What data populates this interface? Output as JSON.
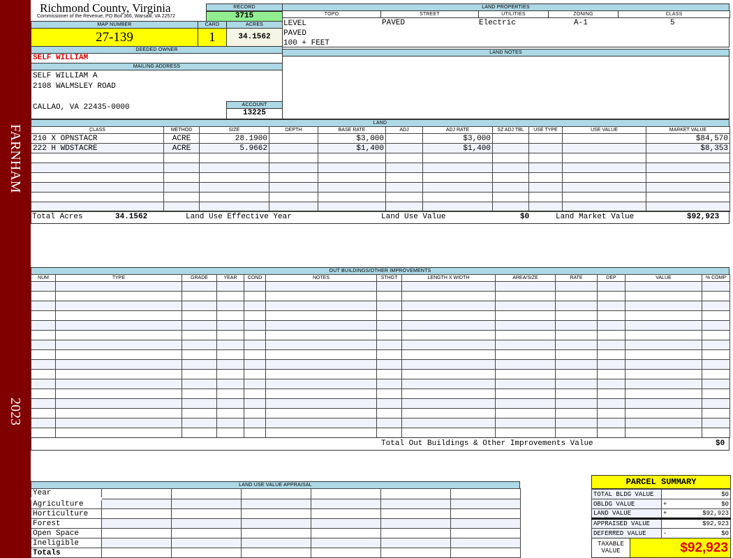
{
  "sidebar": {
    "district": "FARNHAM",
    "year": "2023",
    "color": "#800000"
  },
  "header": {
    "title": "Richmond County, Virginia",
    "subtitle": "Commissioner of the Revenue, PO Box 366, Warsaw, VA 22572"
  },
  "record": {
    "label": "RECORD",
    "value": "3715"
  },
  "parcel": {
    "map_label": "MAP NUMBER",
    "map": "27-139",
    "card_label": "CARD",
    "card": "1",
    "acres_label": "ACRES",
    "acres": "34.1562"
  },
  "owner": {
    "label": "DEEDED OWNER",
    "name": "SELF WILLIAM"
  },
  "mailing": {
    "label": "MAILING ADDRESS",
    "line1": "SELF WILLIAM A",
    "line2": "2108 WALMSLEY ROAD",
    "line3": "CALLAO, VA 22435-0000"
  },
  "account": {
    "label": "ACCOUNT",
    "value": "13225"
  },
  "land_properties": {
    "label": "LAND PROPERTIES",
    "columns": [
      "TOPO",
      "STREET",
      "UTILITIES",
      "ZONING",
      "CLASS"
    ],
    "topo": [
      "LEVEL",
      "PAVED",
      "100 + FEET"
    ],
    "street": "PAVED",
    "utilities": "Electric",
    "zoning": "A-1",
    "class": "5"
  },
  "land_notes": {
    "label": "LAND NOTES"
  },
  "land": {
    "label": "LAND",
    "columns": [
      "CLASS",
      "METHOD",
      "SIZE",
      "DEPTH",
      "BASE RATE",
      "ADJ",
      "ADJ RATE",
      "SZ ADJ TBL",
      "USE TYPE",
      "USE VALUE",
      "MARKET VALUE"
    ],
    "rows": [
      [
        "210 X OPNSTACR",
        "ACRE",
        "28.1900",
        "",
        "$3,000",
        "",
        "$3,000",
        "",
        "",
        "",
        "$84,570"
      ],
      [
        "222 H WDSTACRE",
        "ACRE",
        "5.9662",
        "",
        "$1,400",
        "",
        "$1,400",
        "",
        "",
        "",
        "$8,353"
      ]
    ],
    "totals": {
      "acres_label": "Total Acres",
      "acres": "34.1562",
      "eff_year_label": "Land Use Effective Year",
      "use_value_label": "Land Use Value",
      "use_value": "$0",
      "market_label": "Land Market Value",
      "market": "$92,923"
    }
  },
  "outbuildings": {
    "label": "OUT BUILDINGS/OTHER IMPROVEMENTS",
    "columns": [
      "NUM",
      "TYPE",
      "GRADE",
      "YEAR",
      "COND",
      "NOTES",
      "STHGT",
      "LENGTH X WIDTH",
      "AREA/SIZE",
      "RATE",
      "DEP",
      "VALUE",
      "% COMP"
    ],
    "total_label": "Total Out Buildings & Other Improvements Value",
    "total": "$0"
  },
  "land_use": {
    "label": "LAND USE VALUE APPRAISAL",
    "year_label": "Year",
    "rows": [
      "Agriculture",
      "Horticulture",
      "Forest",
      "Open Space",
      "Ineligible"
    ],
    "totals_label": "Totals"
  },
  "summary": {
    "title": "PARCEL SUMMARY",
    "rows": [
      [
        "TOTAL BLDG VALUE",
        "",
        "$0"
      ],
      [
        "OBLDG VALUE",
        "+",
        "$0"
      ],
      [
        "LAND VALUE",
        "+",
        "$92,923"
      ],
      [
        "APPRAISED VALUE",
        "",
        "$92,923"
      ],
      [
        "DEFERRED VALUE",
        "-",
        "$0"
      ]
    ],
    "taxable_label": "TAXABLE VALUE",
    "taxable": "$92,923"
  }
}
